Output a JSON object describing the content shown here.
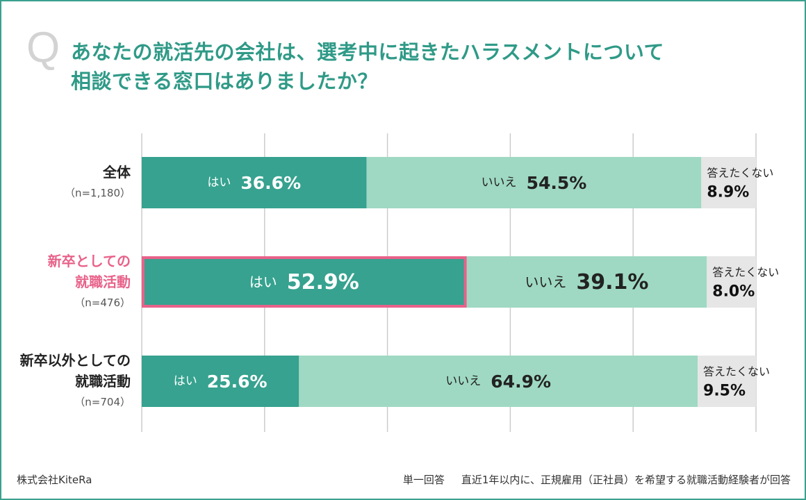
{
  "question": {
    "mark": "Q",
    "line1": "あなたの就活先の会社は、選考中に起きたハラスメントについて",
    "line2": "相談できる窓口はありましたか？"
  },
  "colors": {
    "frame": "#39a08e",
    "title": "#2f9a87",
    "yes": "#36a28f",
    "no": "#9fd9c3",
    "noanswer": "#e6e6e6",
    "highlight": "#e8628a",
    "grid": "#cccccc"
  },
  "chart_data": {
    "type": "bar",
    "orientation": "horizontal",
    "stacked": true,
    "xlim": [
      0,
      100
    ],
    "gridlines": [
      0,
      20,
      40,
      60,
      80,
      100
    ],
    "categories": [
      {
        "label_lines": [
          "全体"
        ],
        "n": "（n=1,180）",
        "highlight": false
      },
      {
        "label_lines": [
          "新卒としての",
          "就職活動"
        ],
        "n": "（n=476）",
        "highlight": true
      },
      {
        "label_lines": [
          "新卒以外としての",
          "就職活動"
        ],
        "n": "（n=704）",
        "highlight": false
      }
    ],
    "series": [
      {
        "name": "はい",
        "values": [
          36.6,
          52.9,
          25.6
        ],
        "labels": [
          "36.6%",
          "52.9%",
          "25.6%"
        ]
      },
      {
        "name": "いいえ",
        "values": [
          54.5,
          39.1,
          64.9
        ],
        "labels": [
          "54.5%",
          "39.1%",
          "64.9%"
        ]
      },
      {
        "name": "答えたくない",
        "values": [
          8.9,
          8.0,
          9.5
        ],
        "labels": [
          "8.9%",
          "8.0%",
          "9.5%"
        ]
      }
    ]
  },
  "footer": {
    "company": "株式会社KiteRa",
    "answer_type": "単一回答",
    "note": "直近1年以内に、正規雇用（正社員）を希望する就職活動経験者が回答"
  }
}
